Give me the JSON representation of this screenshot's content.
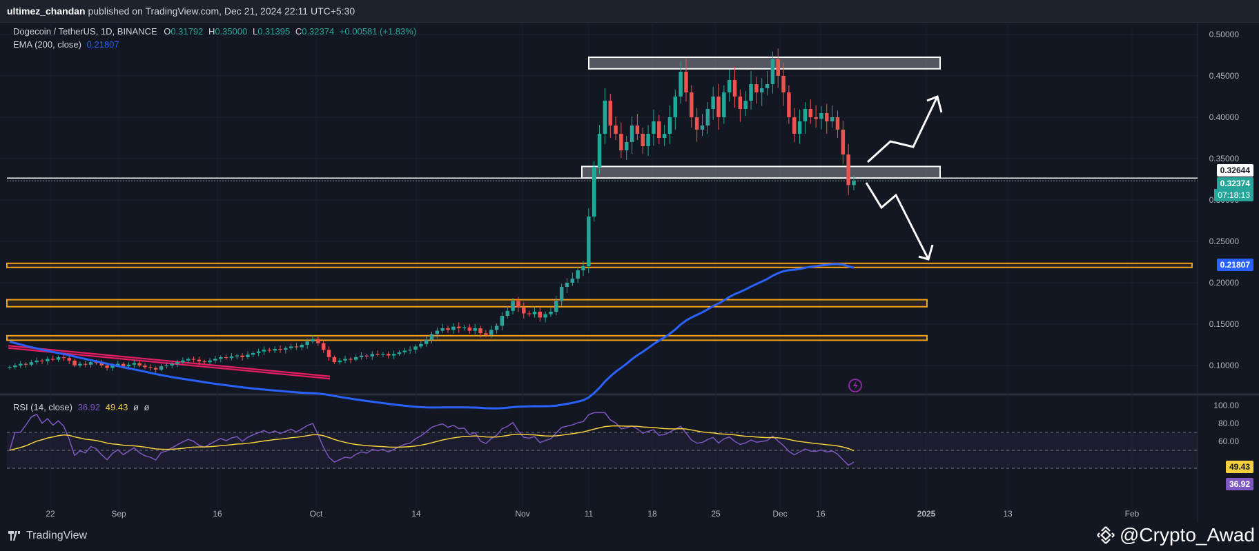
{
  "header": {
    "author": "ultimez_chandan",
    "published_text": " published on TradingView.com, Dec 21, 2024 22:11 UTC+5:30"
  },
  "legend": {
    "symbol": "Dogecoin / TetherUS, 1D, BINANCE",
    "o_label": "O",
    "o": "0.31792",
    "h_label": "H",
    "h": "0.35000",
    "l_label": "L",
    "l": "0.31395",
    "c_label": "C",
    "c": "0.32374",
    "change": "+0.00581 (+1.83%)",
    "ema_label": "EMA (200, close)",
    "ema": "0.21807",
    "rsi_label": "RSI (14, close)",
    "rsi": "36.92",
    "rsi_ma": "49.43",
    "rsi_extra1": "ø",
    "rsi_extra2": "ø"
  },
  "price_tags": {
    "level": "0.32644",
    "last": "0.32374",
    "countdown": "07:18:13",
    "ema": "0.21807",
    "rsi_ma": "49.43",
    "rsi": "36.92"
  },
  "footer": {
    "brand": "TradingView",
    "watermark": "@Crypto_Awad"
  },
  "colors": {
    "background": "#131722",
    "up": "#26a69a",
    "down": "#ef5350",
    "ema": "#2962ff",
    "zone_orange": "#f7a21b",
    "rsi_line": "#7e57c2",
    "rsi_ma": "#f4d03f"
  },
  "chart_data": [
    {
      "type": "candlestick",
      "title": "Dogecoin / TetherUS, 1D, BINANCE",
      "price_axis_ticks": [
        "0.50000",
        "0.45000",
        "0.40000",
        "0.35000",
        "0.30000",
        "0.25000",
        "0.20000",
        "0.15000",
        "0.10000"
      ],
      "ylim": [
        0.065,
        0.515
      ],
      "time_axis_ticks": [
        "22",
        "Sep",
        "16",
        "Oct",
        "14",
        "Nov",
        "11",
        "18",
        "25",
        "Dec",
        "16",
        "2025",
        "13",
        "Feb"
      ],
      "bold_time_ticks": [
        "2025"
      ],
      "series": [
        {
          "name": "EMA (200, close)",
          "last": 0.21807
        },
        {
          "name": "Candles",
          "close": [
            0.098,
            0.1,
            0.102,
            0.101,
            0.104,
            0.106,
            0.105,
            0.108,
            0.107,
            0.11,
            0.109,
            0.106,
            0.1,
            0.102,
            0.101,
            0.104,
            0.103,
            0.1,
            0.097,
            0.1,
            0.102,
            0.099,
            0.101,
            0.103,
            0.1,
            0.098,
            0.097,
            0.095,
            0.099,
            0.1,
            0.102,
            0.104,
            0.106,
            0.108,
            0.107,
            0.105,
            0.104,
            0.106,
            0.108,
            0.11,
            0.109,
            0.111,
            0.112,
            0.11,
            0.113,
            0.115,
            0.117,
            0.119,
            0.118,
            0.12,
            0.119,
            0.121,
            0.123,
            0.122,
            0.125,
            0.129,
            0.132,
            0.127,
            0.119,
            0.11,
            0.104,
            0.106,
            0.108,
            0.107,
            0.11,
            0.112,
            0.111,
            0.114,
            0.113,
            0.114,
            0.112,
            0.114,
            0.116,
            0.118,
            0.119,
            0.123,
            0.126,
            0.131,
            0.138,
            0.142,
            0.145,
            0.143,
            0.147,
            0.145,
            0.146,
            0.142,
            0.145,
            0.139,
            0.137,
            0.143,
            0.148,
            0.16,
            0.166,
            0.178,
            0.17,
            0.163,
            0.162,
            0.165,
            0.158,
            0.162,
            0.165,
            0.178,
            0.195,
            0.2,
            0.205,
            0.215,
            0.22,
            0.28,
            0.34,
            0.38,
            0.42,
            0.39,
            0.38,
            0.36,
            0.37,
            0.39,
            0.38,
            0.365,
            0.38,
            0.395,
            0.375,
            0.38,
            0.4,
            0.425,
            0.455,
            0.43,
            0.4,
            0.385,
            0.39,
            0.41,
            0.425,
            0.4,
            0.43,
            0.445,
            0.425,
            0.41,
            0.42,
            0.44,
            0.43,
            0.435,
            0.44,
            0.47,
            0.45,
            0.43,
            0.4,
            0.38,
            0.395,
            0.41,
            0.4,
            0.398,
            0.405,
            0.395,
            0.4,
            0.385,
            0.355,
            0.318,
            0.323
          ],
          "up_color": "#26a69a",
          "down_color": "#ef5350"
        }
      ],
      "zones": [
        {
          "label": "resistance",
          "from": 0.4585,
          "to": 0.4725,
          "style": "white"
        },
        {
          "label": "pivot",
          "from": 0.3265,
          "to": 0.3405,
          "style": "white"
        },
        {
          "label": "support",
          "from": 0.2185,
          "to": 0.2235,
          "style": "orange"
        },
        {
          "label": "support",
          "from": 0.171,
          "to": 0.1795,
          "style": "orange"
        },
        {
          "label": "support",
          "from": 0.1305,
          "to": 0.136,
          "style": "orange"
        }
      ],
      "horizontal_line": 0.32644
    },
    {
      "type": "line",
      "title": "RSI (14, close)",
      "rsi_axis_ticks": [
        "100.00",
        "80.00",
        "60.00"
      ],
      "ylim": [
        0,
        100
      ],
      "bands": [
        70,
        50,
        30
      ],
      "series": [
        {
          "name": "RSI",
          "last": 36.92
        },
        {
          "name": "RSI MA",
          "last": 49.43
        }
      ]
    }
  ]
}
